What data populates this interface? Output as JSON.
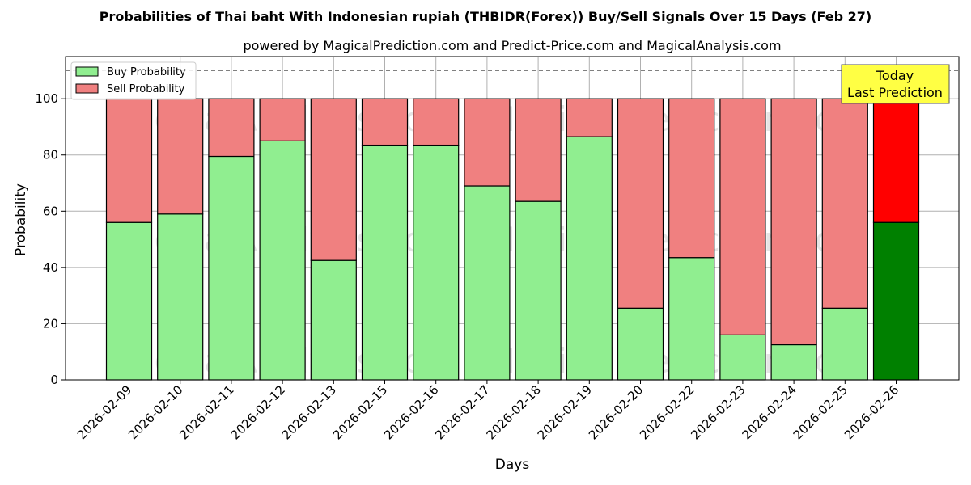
{
  "chart_data": {
    "type": "bar",
    "stacked": true,
    "title": "Probabilities of Thai baht With Indonesian rupiah (THBIDR(Forex)) Buy/Sell Signals Over 15 Days (Feb 27)",
    "subtitle": "powered by MagicalPrediction.com and Predict-Price.com and MagicalAnalysis.com",
    "xlabel": "Days",
    "ylabel": "Probability",
    "ylim": [
      0,
      115
    ],
    "yticks": [
      0,
      20,
      40,
      60,
      80,
      100
    ],
    "reference_line": 110,
    "grid": true,
    "legend_position": "top-left",
    "categories": [
      "2026-02-09",
      "2026-02-10",
      "2026-02-11",
      "2026-02-12",
      "2026-02-13",
      "2026-02-15",
      "2026-02-16",
      "2026-02-17",
      "2026-02-18",
      "2026-02-19",
      "2026-02-20",
      "2026-02-22",
      "2026-02-23",
      "2026-02-24",
      "2026-02-25",
      "2026-02-26"
    ],
    "series": [
      {
        "name": "Buy Probability",
        "color": "#90ee90",
        "values": [
          56,
          59,
          79.5,
          85,
          42.5,
          83.5,
          83.5,
          69,
          63.5,
          86.5,
          25.5,
          43.5,
          16,
          12.5,
          25.5,
          56
        ]
      },
      {
        "name": "Sell Probability",
        "color": "#f08080",
        "values": [
          44,
          41,
          20.5,
          15,
          57.5,
          16.5,
          16.5,
          31,
          36.5,
          13.5,
          74.5,
          56.5,
          84,
          87.5,
          74.5,
          44
        ]
      }
    ],
    "highlight": {
      "index": 15,
      "buy_color": "#008000",
      "sell_color": "#ff0000"
    },
    "annotation": {
      "lines": [
        "Today",
        "Last Prediction"
      ],
      "background": "#ffff44"
    },
    "watermarks": [
      "MagicalAnalysis.com",
      "MagicalPrediction.com"
    ]
  }
}
